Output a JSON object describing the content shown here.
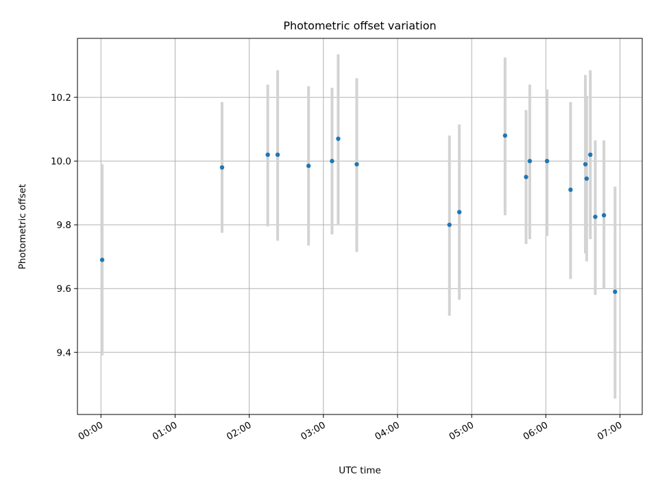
{
  "chart_data": {
    "type": "scatter",
    "title": "Photometric offset variation",
    "xlabel": "UTC time",
    "ylabel": "Photometric offset",
    "x_ticks": [
      "00:00",
      "01:00",
      "02:00",
      "03:00",
      "04:00",
      "05:00",
      "06:00",
      "07:00"
    ],
    "y_ticks": [
      "9.4",
      "9.6",
      "9.8",
      "10.0",
      "10.2"
    ],
    "xlim": [
      "-00:19",
      "07:18"
    ],
    "ylim": [
      9.205,
      10.385
    ],
    "grid": true,
    "error_bars": true,
    "series": [
      {
        "x": [
          "00:01",
          "01:38",
          "02:15",
          "02:23",
          "02:48",
          "03:07",
          "03:12",
          "03:27",
          "04:42",
          "04:50",
          "05:27",
          "05:44",
          "05:47",
          "06:01",
          "06:20",
          "06:32",
          "06:33",
          "06:36",
          "06:40",
          "06:47",
          "06:56"
        ],
        "y": [
          9.69,
          9.98,
          10.02,
          10.02,
          9.985,
          10.0,
          10.07,
          9.99,
          9.8,
          9.84,
          10.08,
          9.95,
          10.0,
          10.0,
          9.91,
          9.99,
          9.945,
          10.02,
          9.825,
          9.83,
          9.59
        ],
        "yerr_low": [
          9.39,
          9.775,
          9.795,
          9.75,
          9.735,
          9.77,
          9.8,
          9.715,
          9.515,
          9.565,
          9.83,
          9.74,
          9.755,
          9.765,
          9.63,
          9.71,
          9.685,
          9.755,
          9.58,
          9.6,
          9.255
        ],
        "yerr_high": [
          9.99,
          10.185,
          10.24,
          10.285,
          10.235,
          10.23,
          10.335,
          10.26,
          10.08,
          10.115,
          10.325,
          10.16,
          10.24,
          10.225,
          10.185,
          10.27,
          10.205,
          10.285,
          10.065,
          10.065,
          9.92
        ]
      }
    ],
    "colors": {
      "points": "#1f77b4",
      "error_bars": "#d3d3d3",
      "grid": "#b0b0b0",
      "axes": "#000000"
    }
  }
}
